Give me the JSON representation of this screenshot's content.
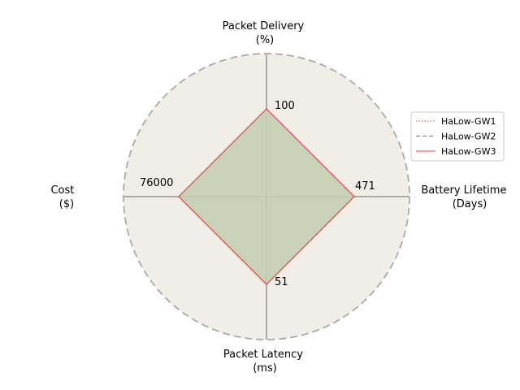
{
  "chart_data": {
    "type": "radar",
    "axes": [
      {
        "label_line1": "Packet Delivery",
        "label_line2": "(%)",
        "max_label": "100"
      },
      {
        "label_line1": "Battery Lifetime",
        "label_line2": "(Days)",
        "max_label": "471"
      },
      {
        "label_line1": "Packet Latency",
        "label_line2": "(ms)",
        "max_label": "51"
      },
      {
        "label_line1": "Cost",
        "label_line2": "($)",
        "max_label": "76000"
      }
    ],
    "series": [
      {
        "name": "HaLow-GW1",
        "values": [
          100,
          471,
          51,
          76000
        ],
        "line_style": "dotted"
      },
      {
        "name": "HaLow-GW2",
        "values": [
          100,
          471,
          51,
          76000
        ],
        "line_style": "dashed"
      },
      {
        "name": "HaLow-GW3",
        "values": [
          100,
          471,
          51,
          76000
        ],
        "line_style": "solid"
      }
    ],
    "colors": {
      "line": "#e84040",
      "fill": "#c5cdb4",
      "background": "#f1eee7",
      "axis": "#aaaaaa",
      "border": "#aaaaaa"
    },
    "legend_position": "right",
    "grid": false
  }
}
